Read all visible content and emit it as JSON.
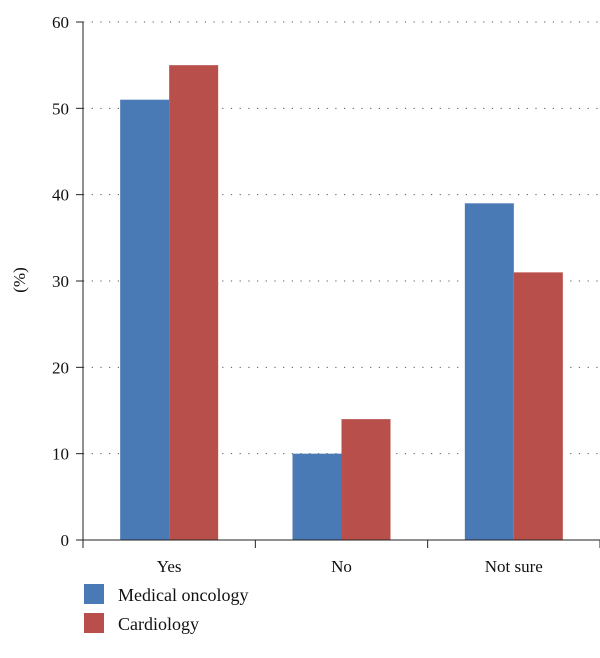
{
  "chart_data": {
    "type": "bar",
    "title": "",
    "xlabel": "",
    "ylabel": "(%)",
    "categories": [
      "Yes",
      "No",
      "Not sure"
    ],
    "series": [
      {
        "name": "Medical oncology",
        "values": [
          51,
          10,
          39
        ],
        "color": "#4a7ab5"
      },
      {
        "name": "Cardiology",
        "values": [
          55,
          14,
          31
        ],
        "color": "#b94f4b"
      }
    ],
    "ylim": [
      0,
      60
    ],
    "yticks": [
      0,
      10,
      20,
      30,
      40,
      50,
      60
    ],
    "grid": "dotted-horizontal",
    "legend_position": "bottom-left"
  }
}
